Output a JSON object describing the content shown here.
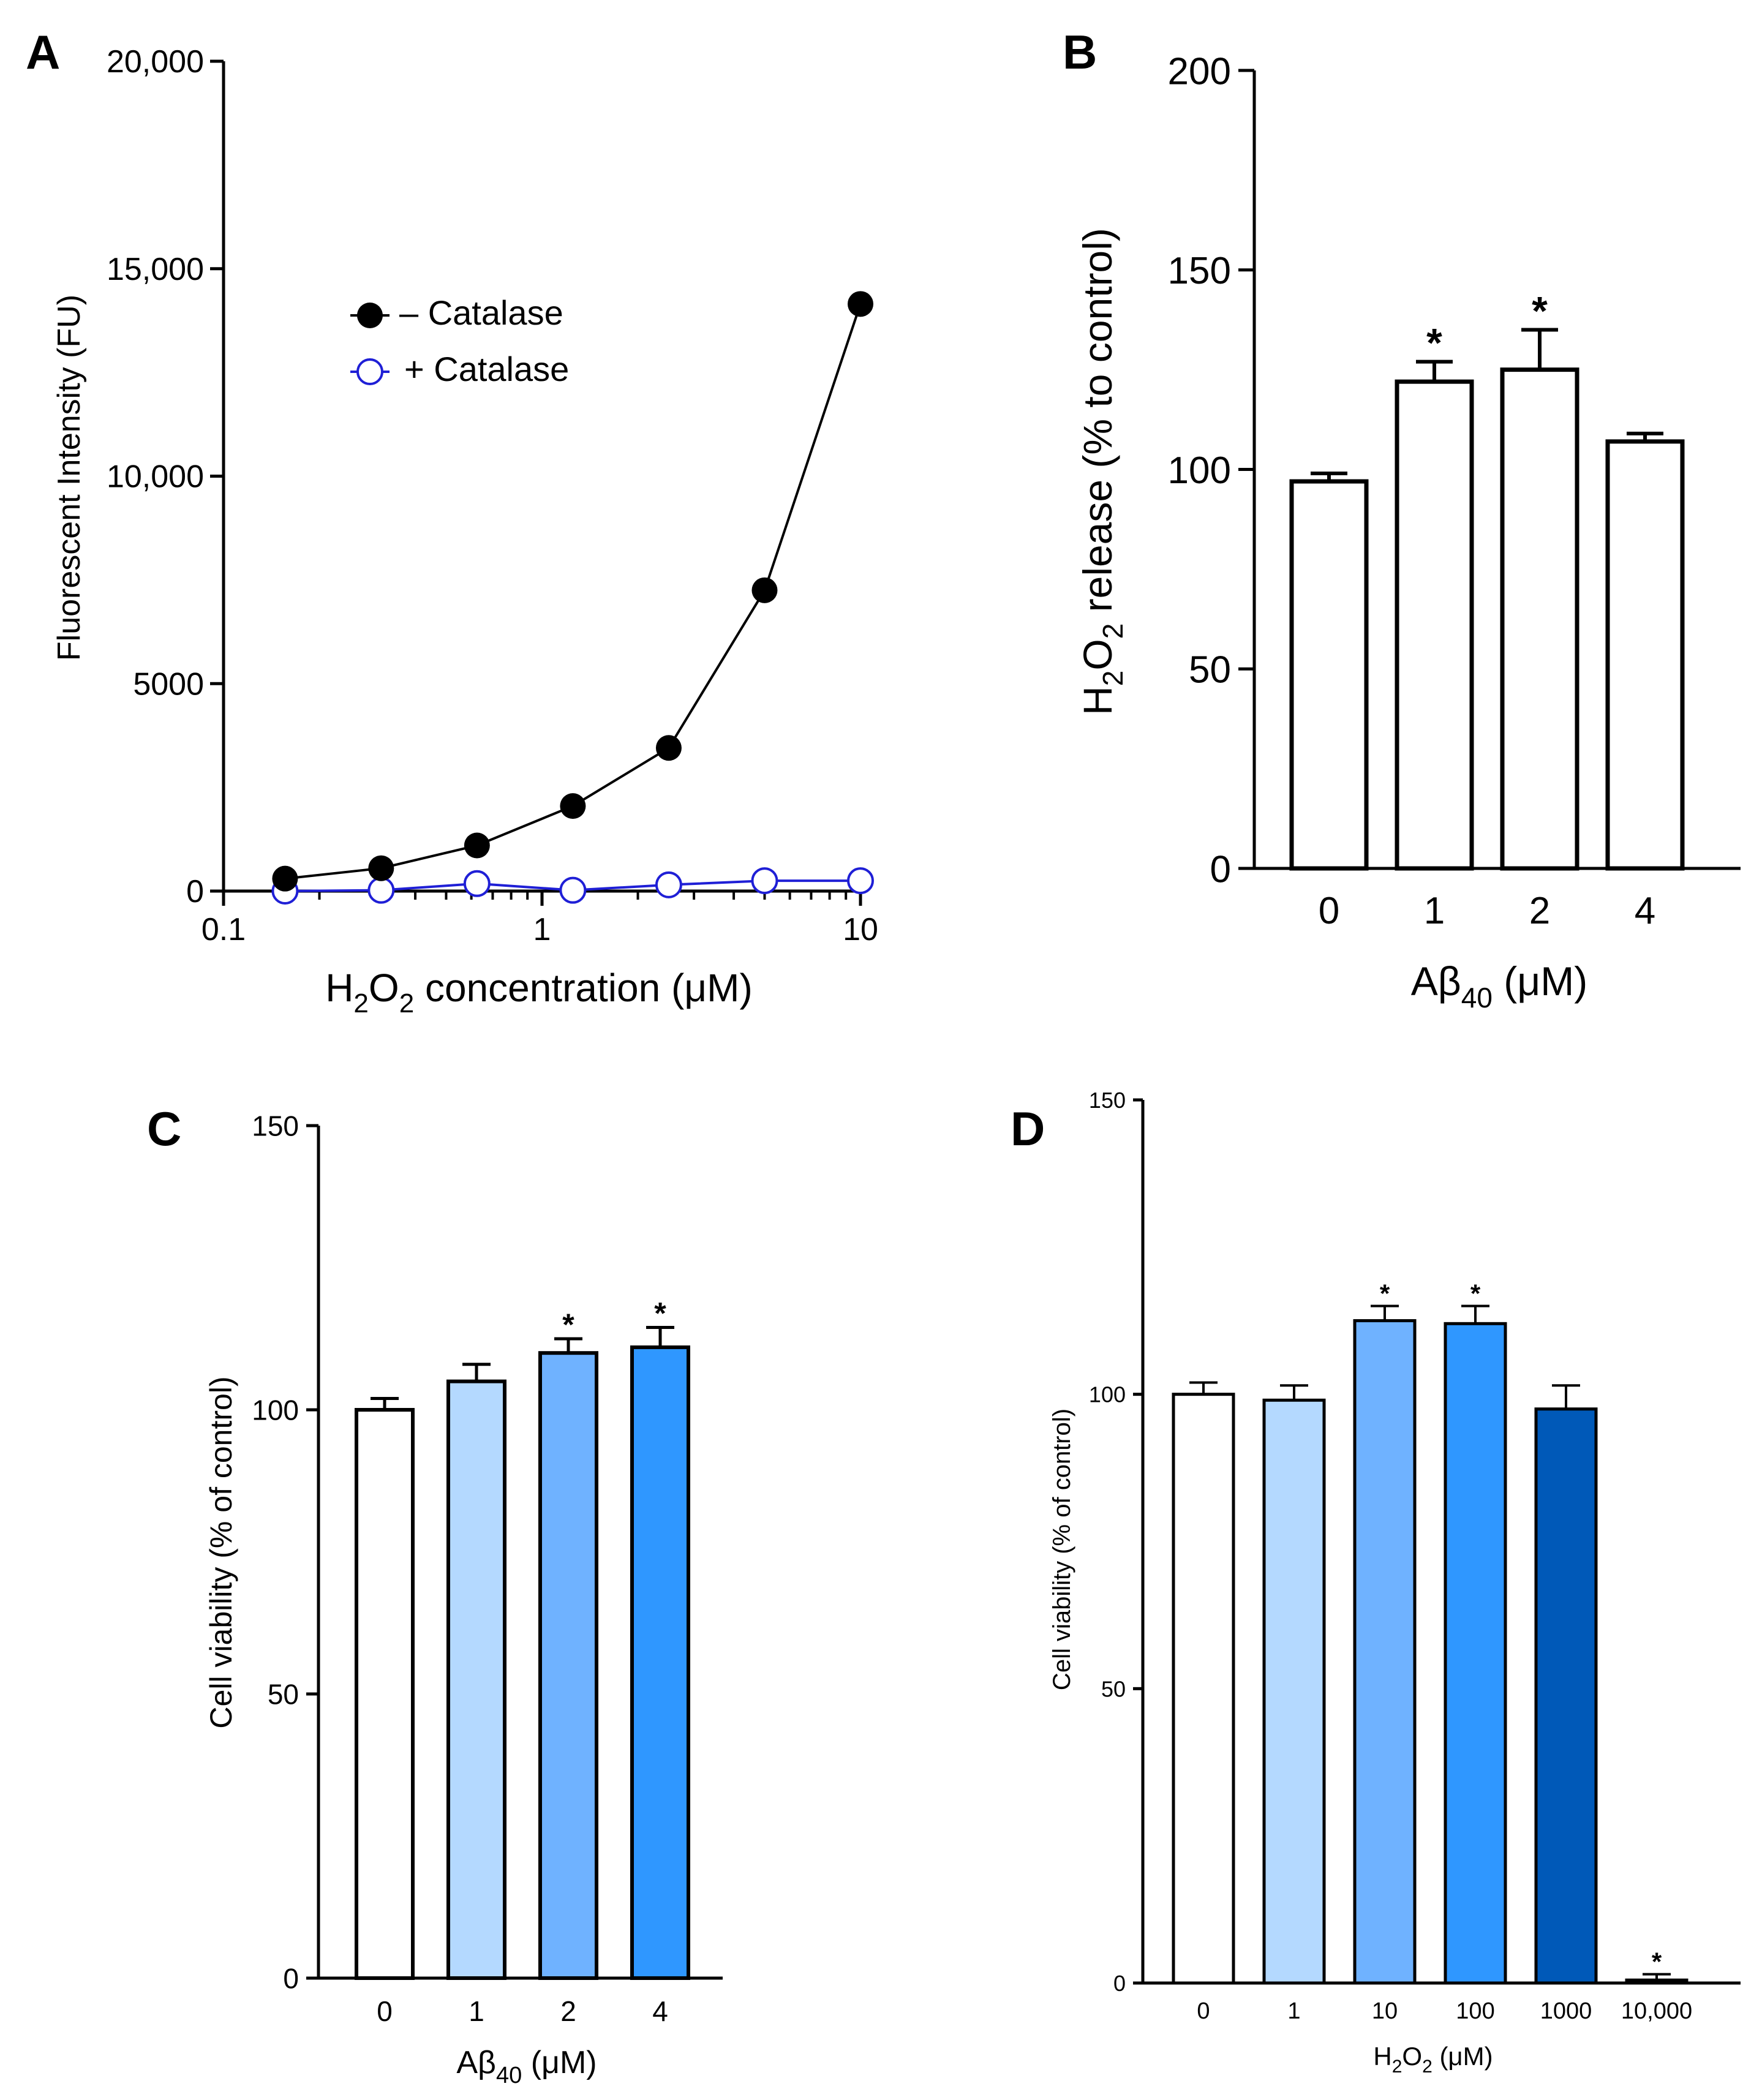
{
  "figure": {
    "panels": [
      "A",
      "B",
      "C",
      "D"
    ]
  },
  "colors": {
    "black": "#000000",
    "catalase_blue": "#1f1fd6",
    "bar_white": "#ffffff",
    "bar_light_blue": "#b4d9ff",
    "bar_mid_blue": "#6fb2ff",
    "bar_blue": "#2f97ff",
    "bar_dark_blue": "#0059b8"
  },
  "chart_data": [
    {
      "panel": "A",
      "type": "line",
      "xscale": "log",
      "xlim": [
        0.1,
        10
      ],
      "ylim": [
        0,
        20000
      ],
      "xticks": [
        0.1,
        1,
        10
      ],
      "xtick_labels": [
        "0.1",
        "1",
        "10"
      ],
      "yticks": [
        0,
        5000,
        10000,
        15000,
        20000
      ],
      "ytick_labels": [
        "0",
        "5000",
        "10,000",
        "15,000",
        "20,000"
      ],
      "xlabel_main": "H",
      "xlabel_sub1": "2",
      "xlabel_mid": "O",
      "xlabel_sub2": "2",
      "xlabel_rest": " concentration (μM)",
      "ylabel": "Fluorescent Intensity (FU)",
      "legend_position": "upper-middle",
      "x": [
        0.156,
        0.3125,
        0.625,
        1.25,
        2.5,
        5,
        10
      ],
      "series": [
        {
          "name": "– Catalase",
          "marker": "filled-circle",
          "color": "#000000",
          "values": [
            300,
            550,
            1100,
            2050,
            3450,
            7250,
            14150
          ]
        },
        {
          "name": "+ Catalase",
          "marker": "open-circle",
          "color": "#1f1fd6",
          "values": [
            0,
            20,
            180,
            20,
            150,
            250,
            250
          ]
        }
      ]
    },
    {
      "panel": "B",
      "type": "bar",
      "categories": [
        "0",
        "1",
        "2",
        "4"
      ],
      "values": [
        97,
        122,
        125,
        107
      ],
      "errors": [
        2,
        5,
        10,
        2
      ],
      "significant": [
        false,
        true,
        true,
        false
      ],
      "sig_mark": "*",
      "ylim": [
        0,
        200
      ],
      "yticks": [
        0,
        50,
        100,
        150,
        200
      ],
      "xlabel_main": "Aβ",
      "xlabel_sub": "40",
      "xlabel_rest": " (μM)",
      "ylabel_main": "H",
      "ylabel_sub1": "2",
      "ylabel_mid": "O",
      "ylabel_sub2": "2",
      "ylabel_rest": " release (% to control)",
      "bar_colors": [
        "#ffffff",
        "#ffffff",
        "#ffffff",
        "#ffffff"
      ]
    },
    {
      "panel": "C",
      "type": "bar",
      "categories": [
        "0",
        "1",
        "2",
        "4"
      ],
      "values": [
        100,
        105,
        110,
        111
      ],
      "errors": [
        2,
        3,
        2.5,
        3.5
      ],
      "significant": [
        false,
        false,
        true,
        true
      ],
      "sig_mark": "*",
      "ylim": [
        0,
        150
      ],
      "yticks": [
        0,
        50,
        100,
        150
      ],
      "xlabel_main": "Aβ",
      "xlabel_sub": "40",
      "xlabel_rest": " (μM)",
      "ylabel": "Cell viability (% of control)",
      "bar_colors": [
        "#ffffff",
        "#b4d9ff",
        "#6fb2ff",
        "#2f97ff"
      ]
    },
    {
      "panel": "D",
      "type": "bar",
      "categories": [
        "0",
        "1",
        "10",
        "100",
        "1000",
        "10,000"
      ],
      "values": [
        100,
        99,
        112.5,
        112,
        97.5,
        0.5
      ],
      "errors": [
        2,
        2.5,
        2.5,
        3,
        4,
        1
      ],
      "significant": [
        false,
        false,
        true,
        true,
        false,
        true
      ],
      "sig_mark": "*",
      "ylim": [
        0,
        150
      ],
      "yticks": [
        0,
        50,
        100,
        150
      ],
      "xlabel_main": "H",
      "xlabel_sub1": "2",
      "xlabel_mid": "O",
      "xlabel_sub2": "2",
      "xlabel_rest": " (μM)",
      "ylabel": "Cell viability (% of control)",
      "bar_colors": [
        "#ffffff",
        "#b4d9ff",
        "#6fb2ff",
        "#2f97ff",
        "#0059b8",
        "#0059b8"
      ]
    }
  ]
}
